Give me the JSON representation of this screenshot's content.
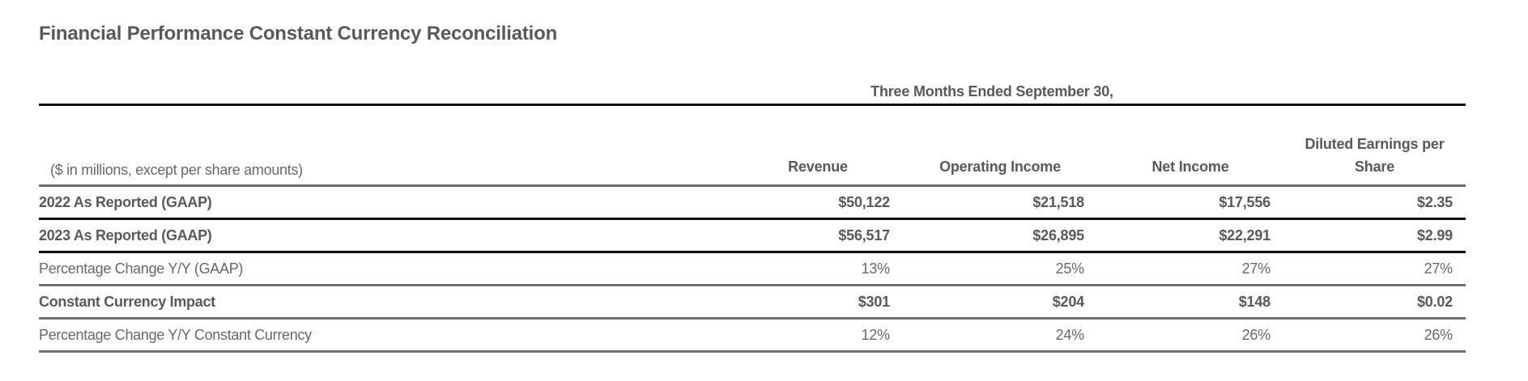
{
  "title": "Financial Performance Constant Currency Reconciliation",
  "table": {
    "period_header": "Three Months Ended September 30,",
    "measure_label": "($ in millions, except per share amounts)",
    "columns": [
      "Revenue",
      "Operating Income",
      "Net Income",
      "Diluted Earnings per Share"
    ],
    "rows": [
      {
        "label": "2022 As Reported (GAAP)",
        "emphasis": "bold",
        "values": [
          "$50,122",
          "$21,518",
          "$17,556",
          "$2.35"
        ]
      },
      {
        "label": "2023 As Reported (GAAP)",
        "emphasis": "bold",
        "values": [
          "$56,517",
          "$26,895",
          "$22,291",
          "$2.99"
        ]
      },
      {
        "label": "Percentage Change Y/Y (GAAP)",
        "emphasis": "regular",
        "values": [
          "13%",
          "25%",
          "27%",
          "27%"
        ]
      },
      {
        "label": "Constant Currency Impact",
        "emphasis": "bold",
        "values": [
          "$301",
          "$204",
          "$148",
          "$0.02"
        ]
      },
      {
        "label": "Percentage Change Y/Y Constant Currency",
        "emphasis": "regular",
        "values": [
          "12%",
          "24%",
          "26%",
          "26%"
        ]
      }
    ]
  },
  "colors": {
    "text_bold": "#595959",
    "text_regular": "#686868",
    "rule_strong": "#111111",
    "rule_light": "#6e6e6e",
    "background": "#ffffff"
  }
}
